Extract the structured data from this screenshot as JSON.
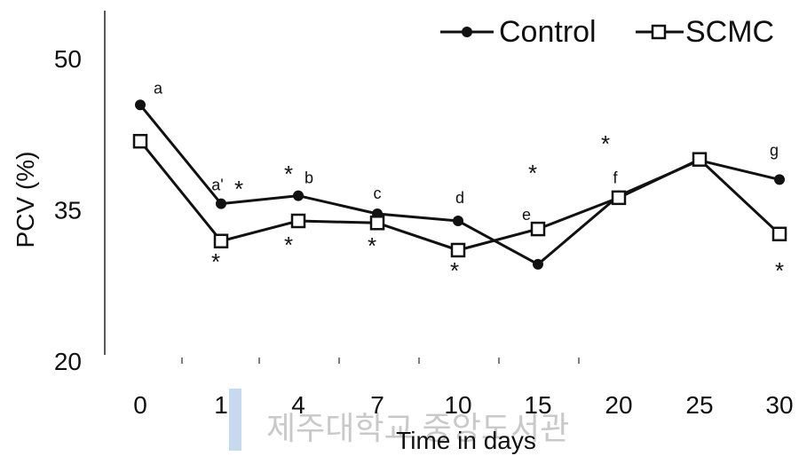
{
  "chart_data": {
    "type": "line",
    "title": "",
    "xlabel": "Time in days",
    "ylabel": "PCV (%)",
    "categories": [
      "0",
      "1",
      "4",
      "7",
      "10",
      "15",
      "20",
      "25",
      "30"
    ],
    "ylim": [
      20,
      50
    ],
    "yticks": [
      20,
      35,
      50
    ],
    "grid": false,
    "legend_position": "top-right",
    "series": [
      {
        "name": "Control",
        "marker": "filled-circle",
        "color": "#111111",
        "values": [
          45.4,
          35.6,
          36.4,
          34.6,
          33.9,
          29.6,
          36.4,
          39.9,
          38.0
        ]
      },
      {
        "name": "SCMC",
        "marker": "open-square",
        "color": "#111111",
        "values": [
          41.8,
          31.9,
          33.9,
          33.7,
          31.0,
          33.1,
          36.2,
          40.0,
          32.6
        ]
      }
    ],
    "letter_annotations": [
      {
        "index": 0,
        "text": "a"
      },
      {
        "index": 1,
        "text": "a'"
      },
      {
        "index": 2,
        "text": "b"
      },
      {
        "index": 3,
        "text": "c"
      },
      {
        "index": 4,
        "text": "d"
      },
      {
        "index": 5,
        "text": "e"
      },
      {
        "index": 6,
        "text": "f"
      },
      {
        "index": 8,
        "text": "g"
      }
    ],
    "significance_markers": [
      {
        "index": 1,
        "text": "*",
        "position": "above"
      },
      {
        "index": 1,
        "text": "*",
        "position": "below"
      },
      {
        "index": 2,
        "text": "*",
        "position": "above"
      },
      {
        "index": 2,
        "text": "*",
        "position": "below"
      },
      {
        "index": 3,
        "text": "*",
        "position": "below"
      },
      {
        "index": 4,
        "text": "*",
        "position": "below"
      },
      {
        "index": 5,
        "text": "*",
        "position": "above"
      },
      {
        "index": 6,
        "text": "*",
        "position": "above"
      },
      {
        "index": 8,
        "text": "*",
        "position": "below"
      }
    ]
  },
  "watermark": {
    "text": "제주대학교 중앙도서관"
  }
}
